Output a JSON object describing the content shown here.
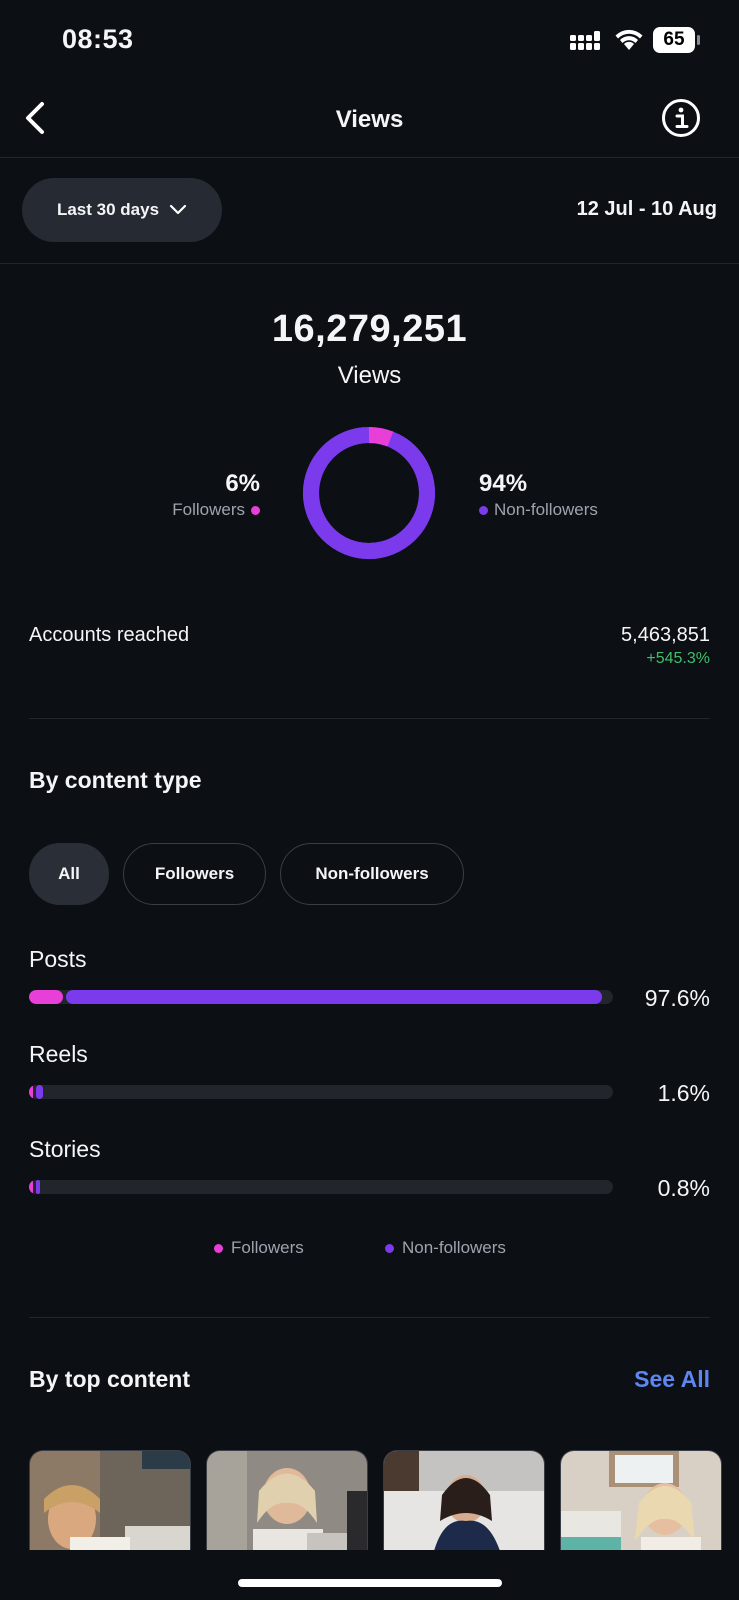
{
  "status_bar": {
    "time": "08:53",
    "battery": "65"
  },
  "nav": {
    "title": "Views"
  },
  "filter": {
    "range_label": "Last 30 days",
    "date_range": "12 Jul - 10 Aug"
  },
  "totals": {
    "views_value": "16,279,251",
    "views_label": "Views"
  },
  "audience": {
    "followers_pct_text": "6%",
    "followers_label": "Followers",
    "followers_fraction": 0.06,
    "non_followers_pct_text": "94%",
    "non_followers_label": "Non-followers",
    "non_followers_fraction": 0.94
  },
  "reach": {
    "label": "Accounts reached",
    "value": "5,463,851",
    "change": "+545.3%"
  },
  "content_type": {
    "title": "By content type",
    "chips": [
      {
        "label": "All",
        "active": true
      },
      {
        "label": "Followers",
        "active": false
      },
      {
        "label": "Non-followers",
        "active": false
      }
    ],
    "rows": [
      {
        "label": "Posts",
        "pct_text": "97.6%",
        "followers_fraction": 0.058,
        "non_followers_fraction": 0.918
      },
      {
        "label": "Reels",
        "pct_text": "1.6%",
        "followers_fraction": 0.004,
        "non_followers_fraction": 0.012
      },
      {
        "label": "Stories",
        "pct_text": "0.8%",
        "followers_fraction": 0.002,
        "non_followers_fraction": 0.006
      }
    ],
    "legend": {
      "followers": "Followers",
      "non_followers": "Non-followers"
    }
  },
  "top_content": {
    "title": "By top content",
    "see_all": "See All"
  },
  "colors": {
    "followers": "#e83fd8",
    "non_followers": "#7c3aed",
    "track": "#22252c",
    "positive": "#3fbf6b",
    "link": "#5d86f0"
  }
}
